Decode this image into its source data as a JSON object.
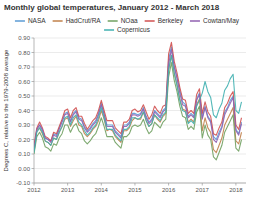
{
  "chart_data": {
    "type": "line",
    "title": "Monthly global temperatures, January 2012 - March 2018",
    "y_label": "Degrees C, relative to the 1979-2008 average",
    "x": [
      2012,
      2012.0833333333333,
      2012.1666666666667,
      2012.25,
      2012.3333333333333,
      2012.4166666666667,
      2012.5,
      2012.5833333333333,
      2012.6666666666667,
      2012.75,
      2012.8333333333333,
      2012.9166666666667,
      2013,
      2013.0833333333333,
      2013.1666666666667,
      2013.25,
      2013.3333333333333,
      2013.4166666666667,
      2013.5,
      2013.5833333333333,
      2013.6666666666667,
      2013.75,
      2013.8333333333333,
      2013.9166666666667,
      2014,
      2014.0833333333333,
      2014.1666666666667,
      2014.25,
      2014.3333333333333,
      2014.4166666666667,
      2014.5,
      2014.5833333333333,
      2014.6666666666667,
      2014.75,
      2014.8333333333333,
      2014.9166666666667,
      2015,
      2015.0833333333333,
      2015.1666666666667,
      2015.25,
      2015.3333333333333,
      2015.4166666666667,
      2015.5,
      2015.5833333333333,
      2015.6666666666667,
      2015.75,
      2015.8333333333333,
      2015.9166666666667,
      2016,
      2016.0833333333333,
      2016.1666666666667,
      2016.25,
      2016.3333333333333,
      2016.4166666666667,
      2016.5,
      2016.5833333333333,
      2016.6666666666667,
      2016.75,
      2016.8333333333333,
      2016.9166666666667,
      2017,
      2017.0833333333333,
      2017.1666666666667,
      2017.25,
      2017.3333333333333,
      2017.4166666666667,
      2017.5,
      2017.5833333333333,
      2017.6666666666667,
      2017.75,
      2017.8333333333333,
      2017.9166666666667,
      2018,
      2018.0833333333333,
      2018.1666666666667
    ],
    "series": [
      {
        "name": "NASA",
        "color": "#5b9bd5",
        "values": [
          0.13,
          0.27,
          0.3,
          0.26,
          0.21,
          0.2,
          0.19,
          0.24,
          0.23,
          0.28,
          0.33,
          0.38,
          0.39,
          0.33,
          0.38,
          0.4,
          0.35,
          0.34,
          0.29,
          0.26,
          0.28,
          0.31,
          0.33,
          0.38,
          0.45,
          0.38,
          0.3,
          0.3,
          0.3,
          0.26,
          0.24,
          0.22,
          0.3,
          0.3,
          0.32,
          0.38,
          0.38,
          0.37,
          0.38,
          0.42,
          0.36,
          0.32,
          0.34,
          0.4,
          0.38,
          0.36,
          0.4,
          0.42,
          0.75,
          0.84,
          0.71,
          0.63,
          0.54,
          0.46,
          0.44,
          0.36,
          0.38,
          0.36,
          0.48,
          0.52,
          0.35,
          0.43,
          0.36,
          0.33,
          0.22,
          0.2,
          0.25,
          0.29,
          0.39,
          0.42,
          0.47,
          0.5,
          0.27,
          0.24,
          0.32
        ]
      },
      {
        "name": "HadCrut/RA",
        "color": "#c0804a",
        "values": [
          0.12,
          0.26,
          0.28,
          0.24,
          0.19,
          0.18,
          0.16,
          0.21,
          0.2,
          0.25,
          0.29,
          0.34,
          0.35,
          0.29,
          0.33,
          0.36,
          0.3,
          0.29,
          0.24,
          0.22,
          0.24,
          0.27,
          0.29,
          0.33,
          0.4,
          0.34,
          0.26,
          0.27,
          0.26,
          0.22,
          0.2,
          0.18,
          0.26,
          0.26,
          0.28,
          0.33,
          0.35,
          0.34,
          0.34,
          0.39,
          0.33,
          0.29,
          0.31,
          0.37,
          0.34,
          0.32,
          0.36,
          0.38,
          0.68,
          0.78,
          0.66,
          0.58,
          0.48,
          0.41,
          0.4,
          0.32,
          0.34,
          0.32,
          0.44,
          0.48,
          0.26,
          0.35,
          0.28,
          0.25,
          0.13,
          0.11,
          0.16,
          0.21,
          0.3,
          0.34,
          0.38,
          0.42,
          0.19,
          0.17,
          0.25
        ]
      },
      {
        "name": "NOaa",
        "color": "#70a060",
        "values": [
          0.1,
          0.22,
          0.25,
          0.21,
          0.15,
          0.14,
          0.12,
          0.17,
          0.16,
          0.21,
          0.24,
          0.3,
          0.3,
          0.25,
          0.29,
          0.31,
          0.26,
          0.24,
          0.19,
          0.17,
          0.19,
          0.22,
          0.24,
          0.29,
          0.35,
          0.29,
          0.22,
          0.22,
          0.22,
          0.18,
          0.16,
          0.14,
          0.22,
          0.22,
          0.24,
          0.29,
          0.3,
          0.29,
          0.3,
          0.34,
          0.28,
          0.24,
          0.26,
          0.32,
          0.3,
          0.28,
          0.32,
          0.34,
          0.63,
          0.73,
          0.61,
          0.53,
          0.43,
          0.36,
          0.35,
          0.27,
          0.29,
          0.27,
          0.39,
          0.43,
          0.21,
          0.3,
          0.23,
          0.2,
          0.08,
          0.06,
          0.11,
          0.16,
          0.25,
          0.29,
          0.33,
          0.37,
          0.14,
          0.12,
          0.2
        ]
      },
      {
        "name": "Berkeley",
        "color": "#d05050",
        "values": [
          0.16,
          0.28,
          0.32,
          0.28,
          0.22,
          0.21,
          0.19,
          0.25,
          0.24,
          0.29,
          0.34,
          0.4,
          0.41,
          0.35,
          0.4,
          0.42,
          0.36,
          0.36,
          0.31,
          0.27,
          0.3,
          0.33,
          0.35,
          0.4,
          0.47,
          0.4,
          0.33,
          0.33,
          0.33,
          0.28,
          0.26,
          0.24,
          0.32,
          0.32,
          0.34,
          0.4,
          0.41,
          0.39,
          0.4,
          0.44,
          0.39,
          0.34,
          0.37,
          0.43,
          0.4,
          0.38,
          0.43,
          0.44,
          0.79,
          0.87,
          0.74,
          0.66,
          0.56,
          0.48,
          0.47,
          0.38,
          0.4,
          0.38,
          0.51,
          0.55,
          0.38,
          0.46,
          0.39,
          0.36,
          0.24,
          0.23,
          0.28,
          0.32,
          0.42,
          0.45,
          0.5,
          0.53,
          0.3,
          0.27,
          0.35
        ]
      },
      {
        "name": "Cowtan/May",
        "color": "#9060b0",
        "values": [
          0.13,
          0.27,
          0.3,
          0.27,
          0.21,
          0.2,
          0.18,
          0.23,
          0.22,
          0.27,
          0.32,
          0.37,
          0.38,
          0.32,
          0.37,
          0.39,
          0.34,
          0.33,
          0.28,
          0.25,
          0.27,
          0.3,
          0.32,
          0.37,
          0.44,
          0.37,
          0.29,
          0.29,
          0.29,
          0.25,
          0.23,
          0.21,
          0.29,
          0.29,
          0.31,
          0.37,
          0.37,
          0.36,
          0.37,
          0.41,
          0.35,
          0.31,
          0.33,
          0.39,
          0.37,
          0.35,
          0.39,
          0.41,
          0.72,
          0.82,
          0.7,
          0.62,
          0.52,
          0.44,
          0.43,
          0.35,
          0.37,
          0.35,
          0.47,
          0.51,
          0.34,
          0.42,
          0.35,
          0.32,
          0.2,
          0.18,
          0.23,
          0.28,
          0.37,
          0.41,
          0.45,
          0.49,
          0.26,
          0.23,
          0.31
        ]
      },
      {
        "name": "Copernicus",
        "color": "#40b0b0",
        "values": [
          0.11,
          0.25,
          0.28,
          0.25,
          0.19,
          0.18,
          0.16,
          0.21,
          0.2,
          0.25,
          0.29,
          0.35,
          0.36,
          0.3,
          0.35,
          0.37,
          0.32,
          0.3,
          0.26,
          0.23,
          0.25,
          0.28,
          0.3,
          0.35,
          0.42,
          0.35,
          0.27,
          0.27,
          0.27,
          0.23,
          0.21,
          0.19,
          0.27,
          0.27,
          0.29,
          0.35,
          0.35,
          0.34,
          0.35,
          0.39,
          0.33,
          0.29,
          0.31,
          0.37,
          0.35,
          0.33,
          0.37,
          0.39,
          0.68,
          0.78,
          0.66,
          0.57,
          0.47,
          0.4,
          0.39,
          0.31,
          0.33,
          0.31,
          0.43,
          0.47,
          0.52,
          0.6,
          0.53,
          0.49,
          0.37,
          0.35,
          0.41,
          0.45,
          0.54,
          0.57,
          0.62,
          0.65,
          0.4,
          0.38,
          0.46
        ]
      }
    ],
    "xlim": [
      2012.0,
      2018.3
    ],
    "xticks": [
      2012,
      2013,
      2014,
      2015,
      2016,
      2017,
      2018
    ],
    "ylim": [
      -0.1,
      0.9
    ],
    "yticks": [
      {
        "value": -0.1,
        "label": "-0.10"
      },
      {
        "value": 0.0,
        "label": "0.00"
      },
      {
        "value": 0.1,
        "label": "0.10"
      },
      {
        "value": 0.2,
        "label": "0.20"
      },
      {
        "value": 0.3,
        "label": "0.30"
      },
      {
        "value": 0.4,
        "label": "0.40"
      },
      {
        "value": 0.5,
        "label": "0.50"
      },
      {
        "value": 0.6,
        "label": "0.60"
      },
      {
        "value": 0.7,
        "label": "0.70"
      },
      {
        "value": 0.8,
        "label": "0.80"
      },
      {
        "value": 0.9,
        "label": "0.90"
      }
    ],
    "grid": true,
    "legend": "top"
  }
}
